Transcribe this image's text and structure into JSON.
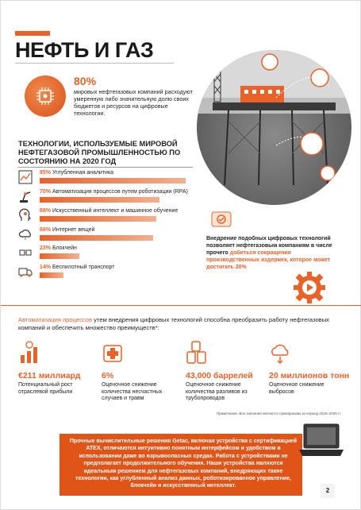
{
  "header": {
    "title": "НЕФТЬ И ГАЗ"
  },
  "stat80": {
    "value": "80%",
    "text": "мировых нефтегазовых компаний расходуют умеренную либо значительную долю своих бюджетов и ресурсов на цифровые технологии."
  },
  "technologies": {
    "title": "ТЕХНОЛОГИИ, ИСПОЛЬЗУЕМЫЕ МИРОВОЙ НЕФТЕГАЗОВОЙ ПРОМЫШЛЕННОСТЬЮ ПО СОСТОЯНИЮ НА 2020 ГОД",
    "items": [
      {
        "pct": "85%",
        "label": "Углубленная аналитика",
        "value": 85,
        "icon": "analytics-icon"
      },
      {
        "pct": "70%",
        "label": "Автоматизация процессов путем роботизации (RPA)",
        "value": 70,
        "icon": "robot-arm-icon"
      },
      {
        "pct": "68%",
        "label": "Искусственный интеллект и машинное обучение",
        "value": 68,
        "icon": "ai-head-icon"
      },
      {
        "pct": "66%",
        "label": "Интернет вещей",
        "value": 66,
        "icon": "cloud-icon"
      },
      {
        "pct": "23%",
        "label": "Блокчейн",
        "value": 23,
        "icon": "blockchain-icon"
      },
      {
        "pct": "14%",
        "label": "Беспилотный транспорт",
        "value": 14,
        "icon": "truck-icon"
      }
    ]
  },
  "callout": {
    "lead": "Внедрение подобных цифровых технологий позволяет нефтегазовым компаниям в числе прочего",
    "highlight": "добиться сокращения производственных издержек, которое может достигать",
    "pct": "20%"
  },
  "automation": {
    "highlight": "Автоматизация процессов",
    "text": "утем внедрения цифровых технологий способна преобразить работу нефтегазовых компаний и обеспечить множество преимуществ*:"
  },
  "kpis": [
    {
      "value": "€211 миллиард",
      "desc": "Потенциальный рост отраслевой прибыли",
      "icon": "money-growth-icon"
    },
    {
      "value": "6%",
      "desc": "Оценочное снижение количества несчастных случаев и травм",
      "icon": "safety-cross-icon"
    },
    {
      "value": "43,000 баррелей",
      "desc": "Оценочное снижение количества разливов из трубопроводов",
      "icon": "barrels-icon"
    },
    {
      "value": "20 миллионов тонн",
      "desc": "Оценочное снижение выбросов",
      "icon": "emissions-cloud-icon"
    }
  ],
  "note": "Примечание. Все значения являются суммарными за период 2016–2025 гг.",
  "footer": {
    "text": "Прочные вычислительные решения Getac, включая устройства с сертификацией ATEX, отличаются интуитивно понятным интерфейсом и удобством в использовании даже во взрывоопасных средах. Работа с устройствами не предполагает продолжительного обучения. Наши устройства являются идеальным решением для нефтегазовых компаний, внедряющих такие технологии, как углубленный анализ данных, роботизированное управление, блокчейн и искусственный интеллект."
  },
  "page_number": "2",
  "colors": {
    "accent": "#e8622a",
    "footer": "#e05418"
  }
}
